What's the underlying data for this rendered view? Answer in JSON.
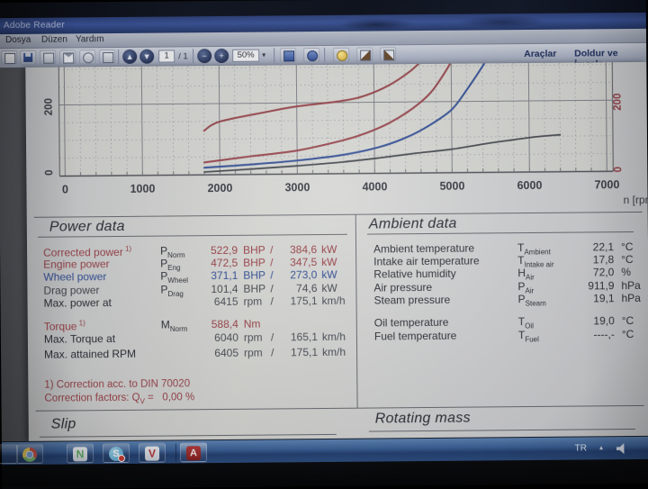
{
  "window": {
    "title": "Adobe Reader",
    "menu": [
      "Dosya",
      "Düzen",
      "Yardım"
    ],
    "toolbar": {
      "page_number": "1",
      "page_count": "/ 1",
      "zoom_level": "50%",
      "tools_label": "Araçlar",
      "fill_sign_label": "Doldur ve İmzala"
    }
  },
  "chart_data": {
    "type": "line",
    "xlabel": "n [rpm]",
    "x_ticks": [
      "0",
      "1000",
      "2000",
      "3000",
      "4000",
      "5000",
      "6000",
      "7000"
    ],
    "x_range": [
      0,
      7000
    ],
    "y_left_ticks": [
      "200",
      "0"
    ],
    "y_right_ticks": [
      "200",
      "0"
    ],
    "grid": true,
    "legend": "none",
    "series": [
      {
        "name": "torque",
        "color": "#9f4a50",
        "points": [
          [
            1800,
            124
          ],
          [
            2000,
            149
          ],
          [
            2600,
            175
          ],
          [
            3000,
            190
          ],
          [
            3600,
            205
          ],
          [
            3900,
            220
          ],
          [
            4200,
            248
          ],
          [
            4450,
            283
          ],
          [
            4620,
            315
          ]
        ]
      },
      {
        "name": "corrected-power",
        "color": "#a04a52",
        "points": [
          [
            1800,
            35
          ],
          [
            2400,
            51
          ],
          [
            3000,
            66
          ],
          [
            3600,
            94
          ],
          [
            3900,
            114
          ],
          [
            4200,
            142
          ],
          [
            4500,
            182
          ],
          [
            4730,
            225
          ],
          [
            4900,
            276
          ],
          [
            5010,
            315
          ]
        ]
      },
      {
        "name": "wheel-power",
        "color": "#3a56a0",
        "points": [
          [
            1800,
            20
          ],
          [
            2400,
            28
          ],
          [
            3000,
            38
          ],
          [
            3600,
            53
          ],
          [
            4050,
            73
          ],
          [
            4400,
            99
          ],
          [
            4700,
            132
          ],
          [
            5000,
            177
          ],
          [
            5200,
            233
          ],
          [
            5380,
            290
          ],
          [
            5470,
            320
          ]
        ]
      },
      {
        "name": "drag-power",
        "color": "#4a4e55",
        "points": [
          [
            1800,
            8
          ],
          [
            2400,
            15
          ],
          [
            3000,
            23
          ],
          [
            3600,
            33
          ],
          [
            4050,
            43
          ],
          [
            4550,
            56
          ],
          [
            5000,
            66
          ],
          [
            5450,
            81
          ],
          [
            5800,
            91
          ],
          [
            6100,
            99
          ],
          [
            6400,
            104
          ]
        ]
      }
    ]
  },
  "report": {
    "power": {
      "title": "Power data",
      "rows": [
        {
          "label": "Corrected power",
          "sup": " 1)",
          "sym": "P",
          "sub": "Norm",
          "v1": "522,9",
          "u1": "BHP",
          "sep": "/",
          "v2": "384,6",
          "u2": "kW",
          "color": "red"
        },
        {
          "label": "Engine power",
          "sup": "",
          "sym": "P",
          "sub": "Eng",
          "v1": "472,5",
          "u1": "BHP",
          "sep": "/",
          "v2": "347,5",
          "u2": "kW",
          "color": "red"
        },
        {
          "label": "Wheel power",
          "sup": "",
          "sym": "P",
          "sub": "Wheel",
          "v1": "371,1",
          "u1": "BHP",
          "sep": "/",
          "v2": "273,0",
          "u2": "kW",
          "color": "blue"
        },
        {
          "label": "Drag power",
          "sup": "",
          "sym": "P",
          "sub": "Drag",
          "v1": "101,4",
          "u1": "BHP",
          "sep": "/",
          "v2": "74,6",
          "u2": "kW",
          "color": "dark"
        },
        {
          "label": "Max. power at",
          "sup": "",
          "sym": "",
          "sub": "",
          "v1": "6415",
          "u1": "rpm",
          "sep": "/",
          "v2": "175,1",
          "u2": "km/h",
          "color": "plain"
        },
        {
          "label": "Torque",
          "sup": " 1)",
          "sym": "M",
          "sub": "Norm",
          "v1": "588,4",
          "u1": "Nm",
          "sep": "",
          "v2": "",
          "u2": "",
          "color": "red"
        },
        {
          "label": "Max. Torque at",
          "sup": "",
          "sym": "",
          "sub": "",
          "v1": "6040",
          "u1": "rpm",
          "sep": "/",
          "v2": "165,1",
          "u2": "km/h",
          "color": "plain"
        },
        {
          "label": "Max. attained RPM",
          "sup": "",
          "sym": "",
          "sub": "",
          "v1": "6405",
          "u1": "rpm",
          "sep": "/",
          "v2": "175,1",
          "u2": "km/h",
          "color": "plain"
        }
      ],
      "footnote1": "1) Correction acc. to DIN 70020",
      "footnote2_pre": "Correction factors: Q",
      "footnote2_sub": "V",
      "footnote2_post": " =   0,00 %"
    },
    "ambient": {
      "title": "Ambient data",
      "rows": [
        {
          "label": "Ambient temperature",
          "sym": "T",
          "sub": "Ambient",
          "val": "22,1",
          "unit": "°C"
        },
        {
          "label": "Intake air temperature",
          "sym": "T",
          "sub": "Intake air",
          "val": "17,8",
          "unit": "°C"
        },
        {
          "label": "Relative humidity",
          "sym": "H",
          "sub": "Air",
          "val": "72,0",
          "unit": "%"
        },
        {
          "label": "Air pressure",
          "sym": "P",
          "sub": "Air",
          "val": "911,9",
          "unit": "hPa"
        },
        {
          "label": "Steam pressure",
          "sym": "P",
          "sub": "Steam",
          "val": "19,1",
          "unit": "hPa"
        },
        {
          "label": "Oil temperature",
          "sym": "T",
          "sub": "Oil",
          "val": "19,0",
          "unit": "°C"
        },
        {
          "label": "Fuel temperature",
          "sym": "T",
          "sub": "Fuel",
          "val": "----,-",
          "unit": "°C"
        }
      ]
    },
    "slip_title": "Slip",
    "rotating_title": "Rotating mass"
  },
  "taskbar": {
    "tray_language": "TR",
    "tray_arrow": "▴",
    "icons": [
      "chrome",
      "green-n",
      "skype",
      "red-v",
      "adobe-reader"
    ],
    "skype_letter": "S",
    "green_n_letter": "N",
    "red_v_letter": "V",
    "adobe_letter": "A"
  },
  "colors": {
    "accent_red": "#a2434b",
    "accent_blue": "#33519e",
    "drag_dark": "#474b52",
    "page_bg": "#d7d8d4",
    "taskbar_blue": "#3a64a0"
  }
}
